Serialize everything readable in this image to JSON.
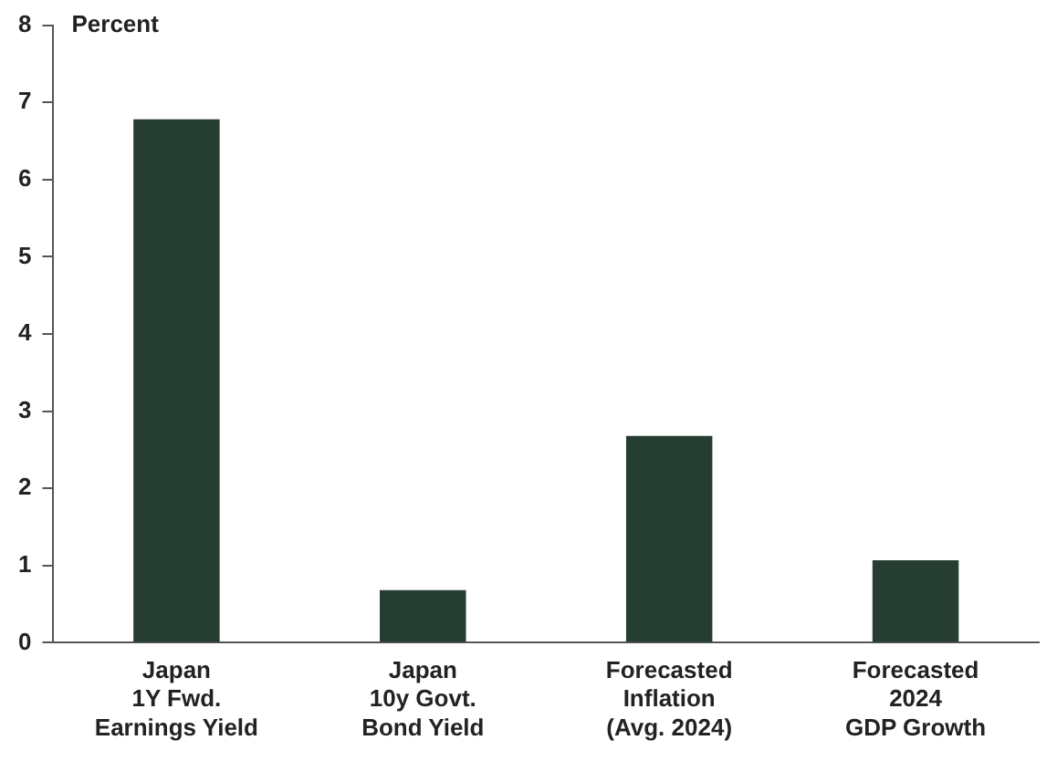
{
  "chart_data": {
    "type": "bar",
    "ylabel": "Percent",
    "categories": [
      "Japan\n1Y Fwd.\nEarnings Yield",
      "Japan\n10y Govt.\nBond Yield",
      "Forecasted\nInflation\n(Avg. 2024)",
      "Forecasted\n2024\nGDP Growth"
    ],
    "values": [
      6.78,
      0.68,
      2.68,
      1.07
    ],
    "color": "#263d31",
    "ylim": [
      0,
      8
    ],
    "yticks": [
      0,
      1,
      2,
      3,
      4,
      5,
      6,
      7,
      8
    ],
    "grid": false,
    "legend": false
  }
}
